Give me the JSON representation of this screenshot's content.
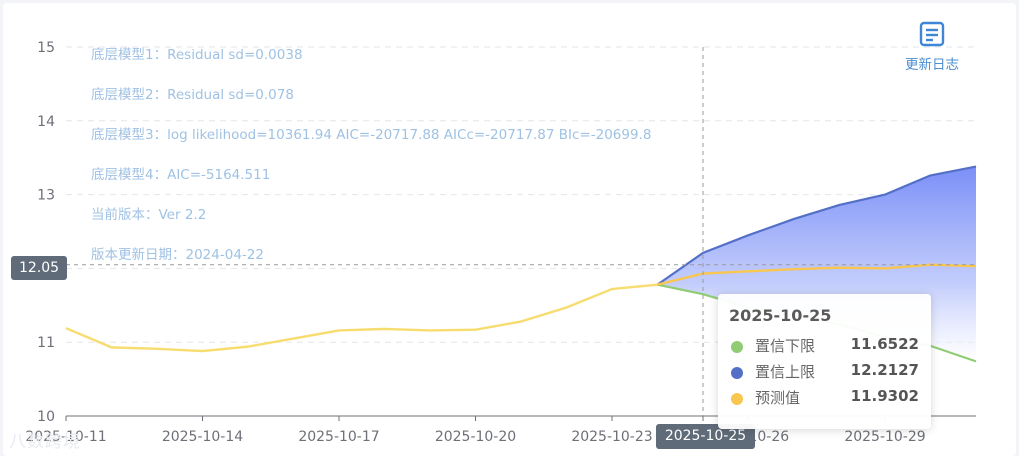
{
  "notes": [
    "底层模型1：Residual sd=0.0038",
    "底层模型2：Residual sd=0.078",
    "底层模型3：log likelihood=10361.94 AIC=-20717.88 AICc=-20717.87 BIc=-20699.8",
    "底层模型4：AIC=-5164.511",
    "当前版本：Ver 2.2",
    "版本更新日期：2024-04-22"
  ],
  "update_log": {
    "label": "更新日志",
    "icon": "document-icon"
  },
  "axis_pointer": {
    "y_label": "12.05",
    "x_label": "2025-10-25"
  },
  "tooltip": {
    "title": "2025-10-25",
    "items": [
      {
        "name": "置信下限",
        "value": "11.6522",
        "color": "#91cc75"
      },
      {
        "name": "置信上限",
        "value": "12.2127",
        "color": "#5470c6"
      },
      {
        "name": "预测值",
        "value": "11.9302",
        "color": "#f9c74f"
      }
    ]
  },
  "watermark": "八数跨境",
  "chart_data": {
    "type": "line",
    "ylim": [
      10,
      15
    ],
    "y_ticks": [
      "10",
      "11",
      "12",
      "13",
      "14",
      "15"
    ],
    "x_tick_labels": [
      "2025-10-11",
      "2025-10-14",
      "2025-10-17",
      "2025-10-20",
      "2025-10-23",
      "2025-10-26",
      "2025-10-29"
    ],
    "x_first": "2025-10-11",
    "x_last": "2025-10-31",
    "grid": true,
    "hover_date": "2025-10-25",
    "hover_y": 12.05,
    "series": [
      {
        "role": "history",
        "color": "#f7dc6f",
        "points": [
          [
            "2025-10-11",
            11.19
          ],
          [
            "2025-10-12",
            10.93
          ],
          [
            "2025-10-13",
            10.91
          ],
          [
            "2025-10-14",
            10.88
          ],
          [
            "2025-10-15",
            10.94
          ],
          [
            "2025-10-16",
            11.05
          ],
          [
            "2025-10-17",
            11.16
          ],
          [
            "2025-10-18",
            11.18
          ],
          [
            "2025-10-19",
            11.16
          ],
          [
            "2025-10-20",
            11.17
          ],
          [
            "2025-10-21",
            11.28
          ],
          [
            "2025-10-22",
            11.47
          ],
          [
            "2025-10-23",
            11.72
          ],
          [
            "2025-10-24",
            11.78
          ]
        ]
      },
      {
        "role": "forecast",
        "name": "预测值",
        "color": "#f9c74f",
        "points": [
          [
            "2025-10-24",
            11.78
          ],
          [
            "2025-10-25",
            11.93
          ],
          [
            "2025-10-26",
            11.96
          ],
          [
            "2025-10-27",
            11.99
          ],
          [
            "2025-10-28",
            12.01
          ],
          [
            "2025-10-29",
            12.0
          ],
          [
            "2025-10-30",
            12.05
          ],
          [
            "2025-10-31",
            12.03
          ]
        ]
      },
      {
        "role": "upper",
        "name": "置信上限",
        "color": "#5470c6",
        "points": [
          [
            "2025-10-24",
            11.78
          ],
          [
            "2025-10-25",
            12.21
          ],
          [
            "2025-10-26",
            12.45
          ],
          [
            "2025-10-27",
            12.67
          ],
          [
            "2025-10-28",
            12.86
          ],
          [
            "2025-10-29",
            13.0
          ],
          [
            "2025-10-30",
            13.26
          ],
          [
            "2025-10-31",
            13.38
          ]
        ]
      },
      {
        "role": "lower",
        "name": "置信下限",
        "color": "#91cc75",
        "points": [
          [
            "2025-10-24",
            11.78
          ],
          [
            "2025-10-25",
            11.65
          ],
          [
            "2025-10-26",
            11.47
          ],
          [
            "2025-10-27",
            11.36
          ],
          [
            "2025-10-28",
            11.24
          ],
          [
            "2025-10-29",
            11.07
          ],
          [
            "2025-10-30",
            10.95
          ],
          [
            "2025-10-31",
            10.74
          ]
        ]
      }
    ]
  }
}
